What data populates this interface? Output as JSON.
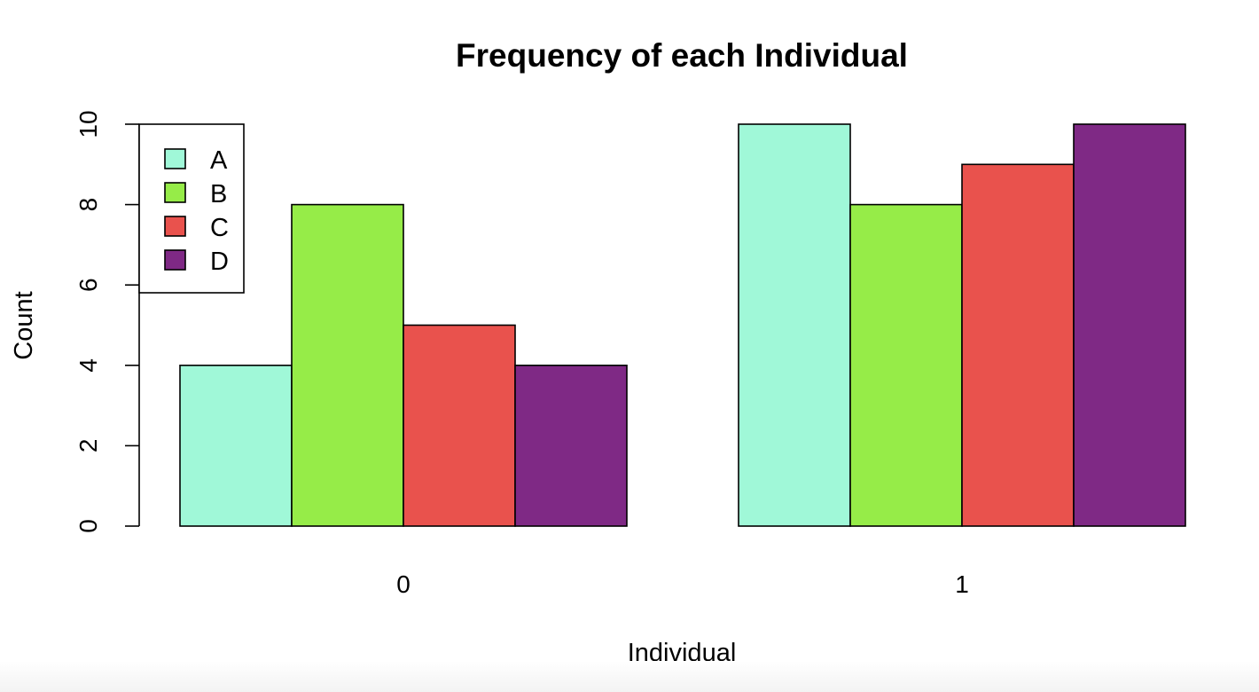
{
  "chart_data": {
    "type": "bar",
    "title": "Frequency of each Individual",
    "xlabel": "Individual",
    "ylabel": "Count",
    "categories": [
      "0",
      "1"
    ],
    "series": [
      {
        "name": "A",
        "values": [
          4,
          10
        ],
        "color": "#A0F8D8"
      },
      {
        "name": "B",
        "values": [
          8,
          8
        ],
        "color": "#96EC48"
      },
      {
        "name": "C",
        "values": [
          5,
          9
        ],
        "color": "#E9524D"
      },
      {
        "name": "D",
        "values": [
          4,
          10
        ],
        "color": "#7F2985"
      }
    ],
    "ylim": [
      0,
      10
    ],
    "yticks": [
      0,
      2,
      4,
      6,
      8,
      10
    ],
    "grid": false,
    "legend_position": "top-left"
  }
}
